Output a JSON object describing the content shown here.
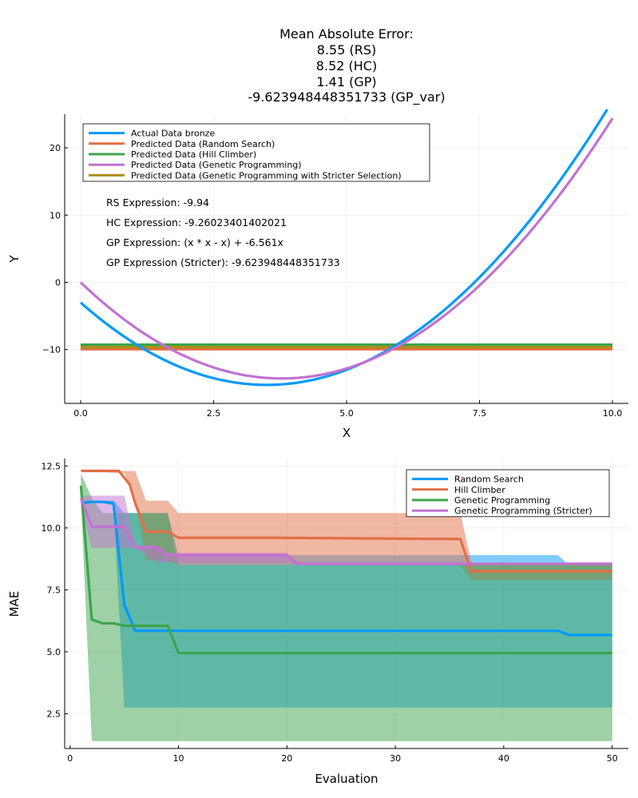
{
  "chart_data": [
    {
      "type": "line",
      "title_lines": [
        "Mean Absolute Error:",
        "8.55 (RS)",
        "8.52 (HC)",
        "1.41 (GP)",
        "-9.623948448351733 (GP_var)"
      ],
      "xlabel": "X",
      "ylabel": "Y",
      "xlim": [
        -0.3,
        10.3
      ],
      "ylim": [
        -18,
        25
      ],
      "xticks": [
        0,
        2.5,
        5,
        7.5,
        10
      ],
      "xtick_labels": [
        "0.0",
        "2.5",
        "5.0",
        "7.5",
        "10.0"
      ],
      "yticks": [
        -10,
        0,
        10,
        20
      ],
      "ytick_labels": [
        "−10",
        "0",
        "10",
        "20"
      ],
      "grid": true,
      "legend_position": "top-left",
      "annotations": [
        "RS Expression: -9.94",
        "HC Expression: -9.26023401402021",
        "GP Expression: (x * x - x) + -6.561x",
        "GP Expression (Stricter): -9.623948448351733"
      ],
      "series": [
        {
          "name": "Actual Data bronze",
          "color": "#009af9",
          "kind": "quadratic",
          "coef": [
            1.0,
            -7.0,
            -3.0
          ],
          "x_range": [
            0,
            10
          ]
        },
        {
          "name": "Predicted Data (Random Search)",
          "color": "#e26f46",
          "kind": "constant",
          "value": -9.94,
          "x_range": [
            0,
            10
          ]
        },
        {
          "name": "Predicted Data (Hill Climber)",
          "color": "#3da44d",
          "kind": "constant",
          "value": -9.26023401402021,
          "x_range": [
            0,
            10
          ]
        },
        {
          "name": "Predicted Data (Genetic Programming)",
          "color": "#c271d2",
          "kind": "quadratic",
          "coef": [
            1.0,
            -7.561,
            0.0
          ],
          "x_range": [
            0,
            10
          ]
        },
        {
          "name": "Predicted Data (Genetic Programming with Stricter Selection)",
          "color": "#ac8d18",
          "kind": "constant",
          "value": -9.623948448351733,
          "x_range": [
            0,
            10
          ]
        }
      ]
    },
    {
      "type": "line",
      "xlabel": "Evaluation",
      "ylabel": "MAE",
      "xlim": [
        -0.5,
        51.5
      ],
      "ylim": [
        1.1,
        12.8
      ],
      "xticks": [
        0,
        10,
        20,
        30,
        40,
        50
      ],
      "xtick_labels": [
        "0",
        "10",
        "20",
        "30",
        "40",
        "50"
      ],
      "yticks": [
        2.5,
        5.0,
        7.5,
        10.0,
        12.5
      ],
      "ytick_labels": [
        "2.5",
        "5.0",
        "7.5",
        "10.0",
        "12.5"
      ],
      "grid": true,
      "legend_position": "top-right",
      "series": [
        {
          "name": "Random Search",
          "color": "#009af9",
          "mean": [
            [
              1,
              11.0
            ],
            [
              2,
              11.05
            ],
            [
              3,
              11.05
            ],
            [
              4,
              11.0
            ],
            [
              5,
              6.9
            ],
            [
              6,
              5.85
            ],
            [
              7,
              5.85
            ],
            [
              10,
              5.85
            ],
            [
              45,
              5.85
            ],
            [
              46,
              5.68
            ],
            [
              50,
              5.68
            ]
          ],
          "band": {
            "x": [
              1,
              2,
              3,
              4,
              5,
              6,
              7,
              8,
              9,
              10,
              20,
              30,
              36,
              37,
              45,
              46,
              50
            ],
            "upper": [
              11.1,
              11.1,
              11.1,
              11.1,
              10.6,
              10.6,
              10.6,
              10.6,
              10.6,
              8.9,
              8.9,
              8.9,
              8.9,
              8.9,
              8.9,
              8.5,
              8.5
            ],
            "lower": [
              11.0,
              11.0,
              11.0,
              10.9,
              2.75,
              2.75,
              2.75,
              2.75,
              2.75,
              2.75,
              2.75,
              2.75,
              2.75,
              2.75,
              2.75,
              2.75,
              2.75
            ]
          }
        },
        {
          "name": "Hill Climber",
          "color": "#e26f46",
          "mean": [
            [
              1,
              12.3
            ],
            [
              4.5,
              12.3
            ],
            [
              5.5,
              11.75
            ],
            [
              6,
              11.0
            ],
            [
              7,
              9.85
            ],
            [
              9,
              9.85
            ],
            [
              10,
              9.6
            ],
            [
              19,
              9.6
            ],
            [
              36,
              9.55
            ],
            [
              37,
              8.25
            ],
            [
              50,
              8.25
            ]
          ],
          "band": {
            "x": [
              1,
              5,
              6,
              7,
              8,
              9,
              10,
              20,
              30,
              36,
              37,
              50
            ],
            "upper": [
              12.3,
              12.3,
              12.3,
              11.1,
              11.1,
              11.1,
              10.6,
              10.6,
              10.6,
              10.6,
              8.6,
              8.6
            ],
            "lower": [
              12.3,
              12.2,
              11.2,
              8.7,
              8.7,
              8.7,
              8.5,
              8.5,
              8.5,
              8.5,
              7.9,
              7.9
            ]
          }
        },
        {
          "name": "Genetic Programming",
          "color": "#3da44d",
          "mean": [
            [
              1,
              11.7
            ],
            [
              2,
              6.3
            ],
            [
              3,
              6.15
            ],
            [
              4,
              6.15
            ],
            [
              5,
              6.05
            ],
            [
              9,
              6.05
            ],
            [
              10,
              4.95
            ],
            [
              50,
              4.95
            ]
          ],
          "band": {
            "x": [
              1,
              2,
              3,
              9,
              10,
              20,
              30,
              40,
              50
            ],
            "upper": [
              12.2,
              11.2,
              10.6,
              10.6,
              8.5,
              8.5,
              8.5,
              8.5,
              8.5
            ],
            "lower": [
              11.1,
              1.4,
              1.4,
              1.4,
              1.4,
              1.4,
              1.4,
              1.4,
              1.4
            ]
          }
        },
        {
          "name": "Genetic Programming (Stricter)",
          "color": "#c271d2",
          "mean": [
            [
              1,
              11.2
            ],
            [
              2,
              10.05
            ],
            [
              5,
              10.05
            ],
            [
              6,
              9.2
            ],
            [
              8,
              9.2
            ],
            [
              9,
              8.9
            ],
            [
              20,
              8.9
            ],
            [
              21,
              8.55
            ],
            [
              50,
              8.55
            ]
          ],
          "band": {
            "x": [
              1,
              2,
              5,
              6,
              8,
              9,
              20,
              21,
              50
            ],
            "upper": [
              11.3,
              11.3,
              11.3,
              9.3,
              9.3,
              9.0,
              9.0,
              8.6,
              8.6
            ],
            "lower": [
              10.9,
              9.2,
              9.2,
              9.2,
              8.6,
              8.6,
              8.6,
              8.5,
              8.5
            ]
          }
        }
      ]
    }
  ]
}
